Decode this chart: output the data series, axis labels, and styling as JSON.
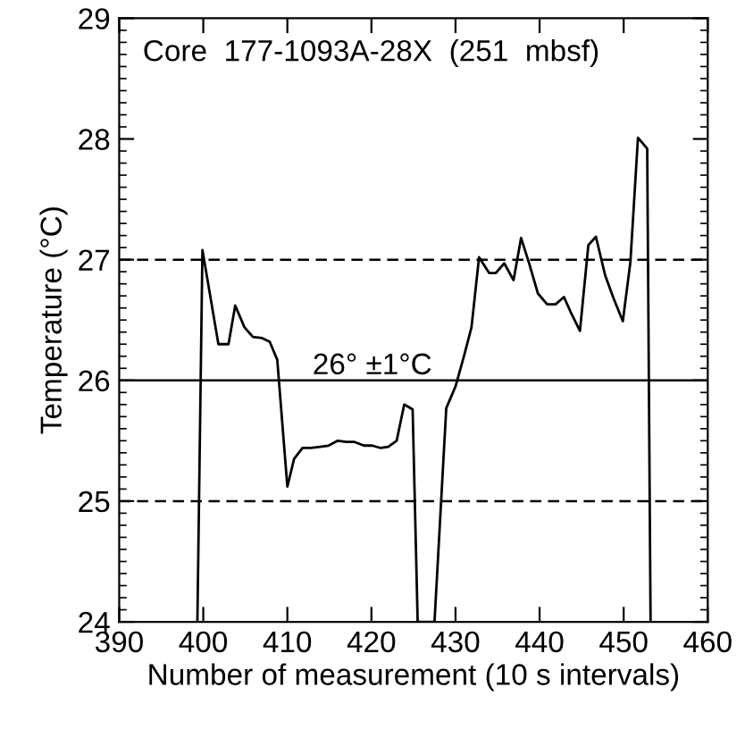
{
  "chart_data": {
    "type": "line",
    "xlabel": "Number of measurement (10 s intervals)",
    "ylabel": "Temperature (°C)",
    "annotations": [
      "Core  177-1093A-28X  (251  mbsf)"
    ],
    "x": [
      399.3,
      399.9,
      401.8,
      403,
      403.8,
      404.9,
      405.9,
      407,
      407.9,
      408.8,
      410,
      410.8,
      411.8,
      412.8,
      413.9,
      414.9,
      416,
      417,
      418,
      419.1,
      420.1,
      421.1,
      422,
      423,
      423.9,
      424.9,
      425.5,
      427.5,
      428.9,
      430,
      431,
      431.9,
      432.8,
      434,
      434.8,
      435.8,
      436.9,
      437.8,
      438.8,
      439.8,
      440.9,
      441.9,
      442.9,
      443.8,
      444.8,
      445.8,
      446.7,
      447.8,
      448.8,
      449.9,
      450.8,
      451.7,
      452.8,
      453.2
    ],
    "series": [
      {
        "color": "#000000",
        "values": [
          24,
          27.08,
          26.3,
          26.3,
          26.62,
          26.44,
          26.36,
          26.35,
          26.32,
          26.17,
          25.12,
          25.35,
          25.44,
          25.44,
          25.45,
          25.46,
          25.5,
          25.49,
          25.49,
          25.46,
          25.46,
          25.44,
          25.45,
          25.5,
          25.8,
          25.76,
          24,
          24,
          25.77,
          25.95,
          26.2,
          26.44,
          27.02,
          26.89,
          26.89,
          26.97,
          26.83,
          27.18,
          26.96,
          26.72,
          26.63,
          26.63,
          26.69,
          26.55,
          26.41,
          27.12,
          27.19,
          26.87,
          26.68,
          26.49,
          26.98,
          28.01,
          27.92,
          24
        ]
      }
    ],
    "xlim": [
      390,
      460
    ],
    "ylim": [
      24,
      29
    ],
    "xticks": [
      390,
      400,
      410,
      420,
      430,
      440,
      450,
      460
    ],
    "yticks": [
      24,
      {
        "value": 24.1,
        "label": null
      },
      {
        "value": 24.2,
        "label": null
      },
      {
        "value": 24.3,
        "label": null
      },
      {
        "value": 24.4,
        "label": null
      },
      {
        "value": 24.5,
        "label": null
      },
      {
        "value": 24.6,
        "label": null
      },
      {
        "value": 24.7,
        "label": null
      },
      {
        "value": 24.8,
        "label": null
      },
      {
        "value": 24.9,
        "label": null
      },
      25,
      {
        "value": 25.1,
        "label": null
      },
      {
        "value": 25.2,
        "label": null
      },
      {
        "value": 25.3,
        "label": null
      },
      {
        "value": 25.4,
        "label": null
      },
      {
        "value": 25.5,
        "label": null
      },
      {
        "value": 25.6,
        "label": null
      },
      {
        "value": 25.7,
        "label": null
      },
      {
        "value": 25.8,
        "label": null
      },
      {
        "value": 25.9,
        "label": null
      },
      26,
      {
        "value": 26.1,
        "label": null
      },
      {
        "value": 26.2,
        "label": null
      },
      {
        "value": 26.3,
        "label": null
      },
      {
        "value": 26.4,
        "label": null
      },
      {
        "value": 26.5,
        "label": null
      },
      {
        "value": 26.6,
        "label": null
      },
      {
        "value": 26.7,
        "label": null
      },
      {
        "value": 26.8,
        "label": null
      },
      {
        "value": 26.9,
        "label": null
      },
      27,
      {
        "value": 27.1,
        "label": null
      },
      {
        "value": 27.2,
        "label": null
      },
      {
        "value": 27.3,
        "label": null
      },
      {
        "value": 27.4,
        "label": null
      },
      {
        "value": 27.5,
        "label": null
      },
      {
        "value": 27.6,
        "label": null
      },
      {
        "value": 27.7,
        "label": null
      },
      {
        "value": 27.8,
        "label": null
      },
      {
        "value": 27.9,
        "label": null
      },
      28,
      {
        "value": 28.1,
        "label": null
      },
      {
        "value": 28.2,
        "label": null
      },
      {
        "value": 28.3,
        "label": null
      },
      {
        "value": 28.4,
        "label": null
      },
      {
        "value": 28.5,
        "label": null
      },
      {
        "value": 28.6,
        "label": null
      },
      {
        "value": 28.7,
        "label": null
      },
      {
        "value": 28.8,
        "label": null
      },
      {
        "value": 28.9,
        "label": null
      },
      29
    ],
    "ref_lines": [
      {
        "axis": "y",
        "value": 26,
        "label": "26° ±1°C",
        "line_style": "solid",
        "color": "#000000"
      },
      {
        "axis": "y",
        "value": 27,
        "line_style": "dashed",
        "color": "#000000"
      },
      {
        "axis": "y",
        "value": 25,
        "line_style": "dashed",
        "color": "#000000"
      }
    ],
    "grid": false,
    "legend": false,
    "marker": "none",
    "line_style": "solid"
  }
}
